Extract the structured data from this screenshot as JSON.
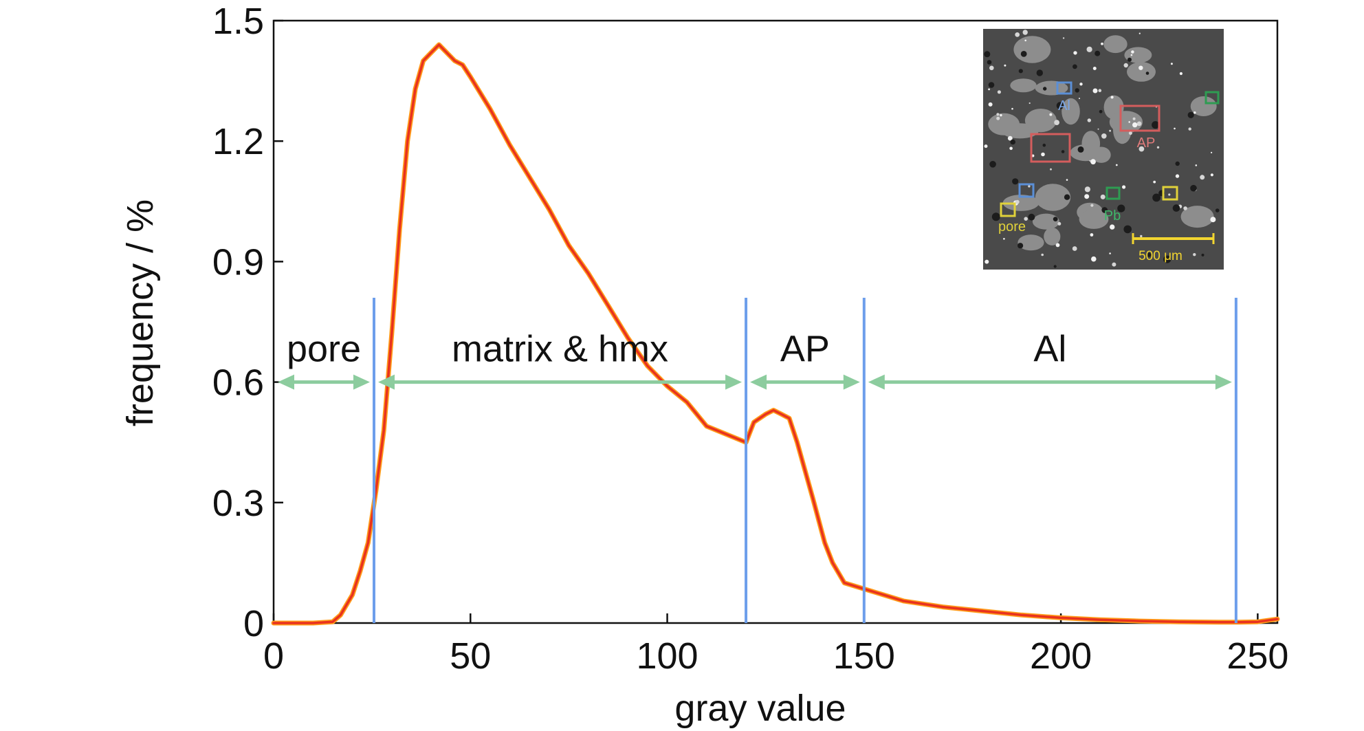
{
  "chart_data": {
    "type": "line",
    "title": "",
    "xlabel": "gray value",
    "ylabel": "frequency / %",
    "xlim": [
      0,
      255
    ],
    "ylim": [
      0,
      1.5
    ],
    "xticks": [
      0,
      50,
      100,
      150,
      200,
      250
    ],
    "yticks": [
      0,
      0.3,
      0.6,
      0.9,
      1.2,
      1.5
    ],
    "xtick_labels": [
      "0",
      "50",
      "100",
      "150",
      "200",
      "250"
    ],
    "ytick_labels": [
      "0",
      "0.3",
      "0.6",
      "0.9",
      "1.2",
      "1.5"
    ],
    "series": [
      {
        "x": [
          0,
          10,
          15,
          17,
          20,
          22,
          24,
          26,
          28,
          30,
          32,
          34,
          36,
          38,
          40,
          42,
          44,
          46,
          48,
          50,
          55,
          60,
          65,
          70,
          75,
          80,
          85,
          90,
          95,
          100,
          105,
          110,
          115,
          120,
          122,
          125,
          127,
          129,
          131,
          133,
          135,
          137,
          140,
          142,
          145,
          150,
          155,
          160,
          170,
          180,
          190,
          200,
          210,
          220,
          230,
          240,
          245,
          250,
          255
        ],
        "y": [
          0,
          0,
          0.003,
          0.02,
          0.07,
          0.13,
          0.2,
          0.33,
          0.48,
          0.72,
          0.98,
          1.2,
          1.33,
          1.4,
          1.42,
          1.44,
          1.42,
          1.4,
          1.39,
          1.36,
          1.28,
          1.19,
          1.11,
          1.03,
          0.94,
          0.87,
          0.79,
          0.71,
          0.64,
          0.59,
          0.55,
          0.49,
          0.47,
          0.45,
          0.5,
          0.52,
          0.53,
          0.52,
          0.51,
          0.45,
          0.38,
          0.31,
          0.2,
          0.15,
          0.1,
          0.085,
          0.07,
          0.055,
          0.04,
          0.03,
          0.02,
          0.013,
          0.008,
          0.005,
          0.003,
          0.002,
          0.002,
          0.003,
          0.01
        ],
        "color": "#e8321f"
      }
    ],
    "boundaries": {
      "x": [
        25.5,
        120,
        150,
        244.5
      ],
      "color": "#6d9eeb"
    },
    "regions": {
      "labels": [
        "pore",
        "matrix & hmx",
        "AP",
        "Al"
      ],
      "ranges": [
        [
          0,
          25.5
        ],
        [
          25.5,
          120
        ],
        [
          120,
          150
        ],
        [
          150,
          244.5
        ]
      ],
      "arrow_y": 0.6,
      "color": "#8ccc9e"
    },
    "inset": {
      "image": "micrograph",
      "labels": [
        "Al",
        "AP",
        "pore",
        "Pb"
      ],
      "scale_bar": "500 μm",
      "label_colors": {
        "Al": "#5b8fd6",
        "AP": "#d45d5d",
        "pore": "#e0d13a",
        "Pb": "#2e9c52"
      }
    }
  }
}
